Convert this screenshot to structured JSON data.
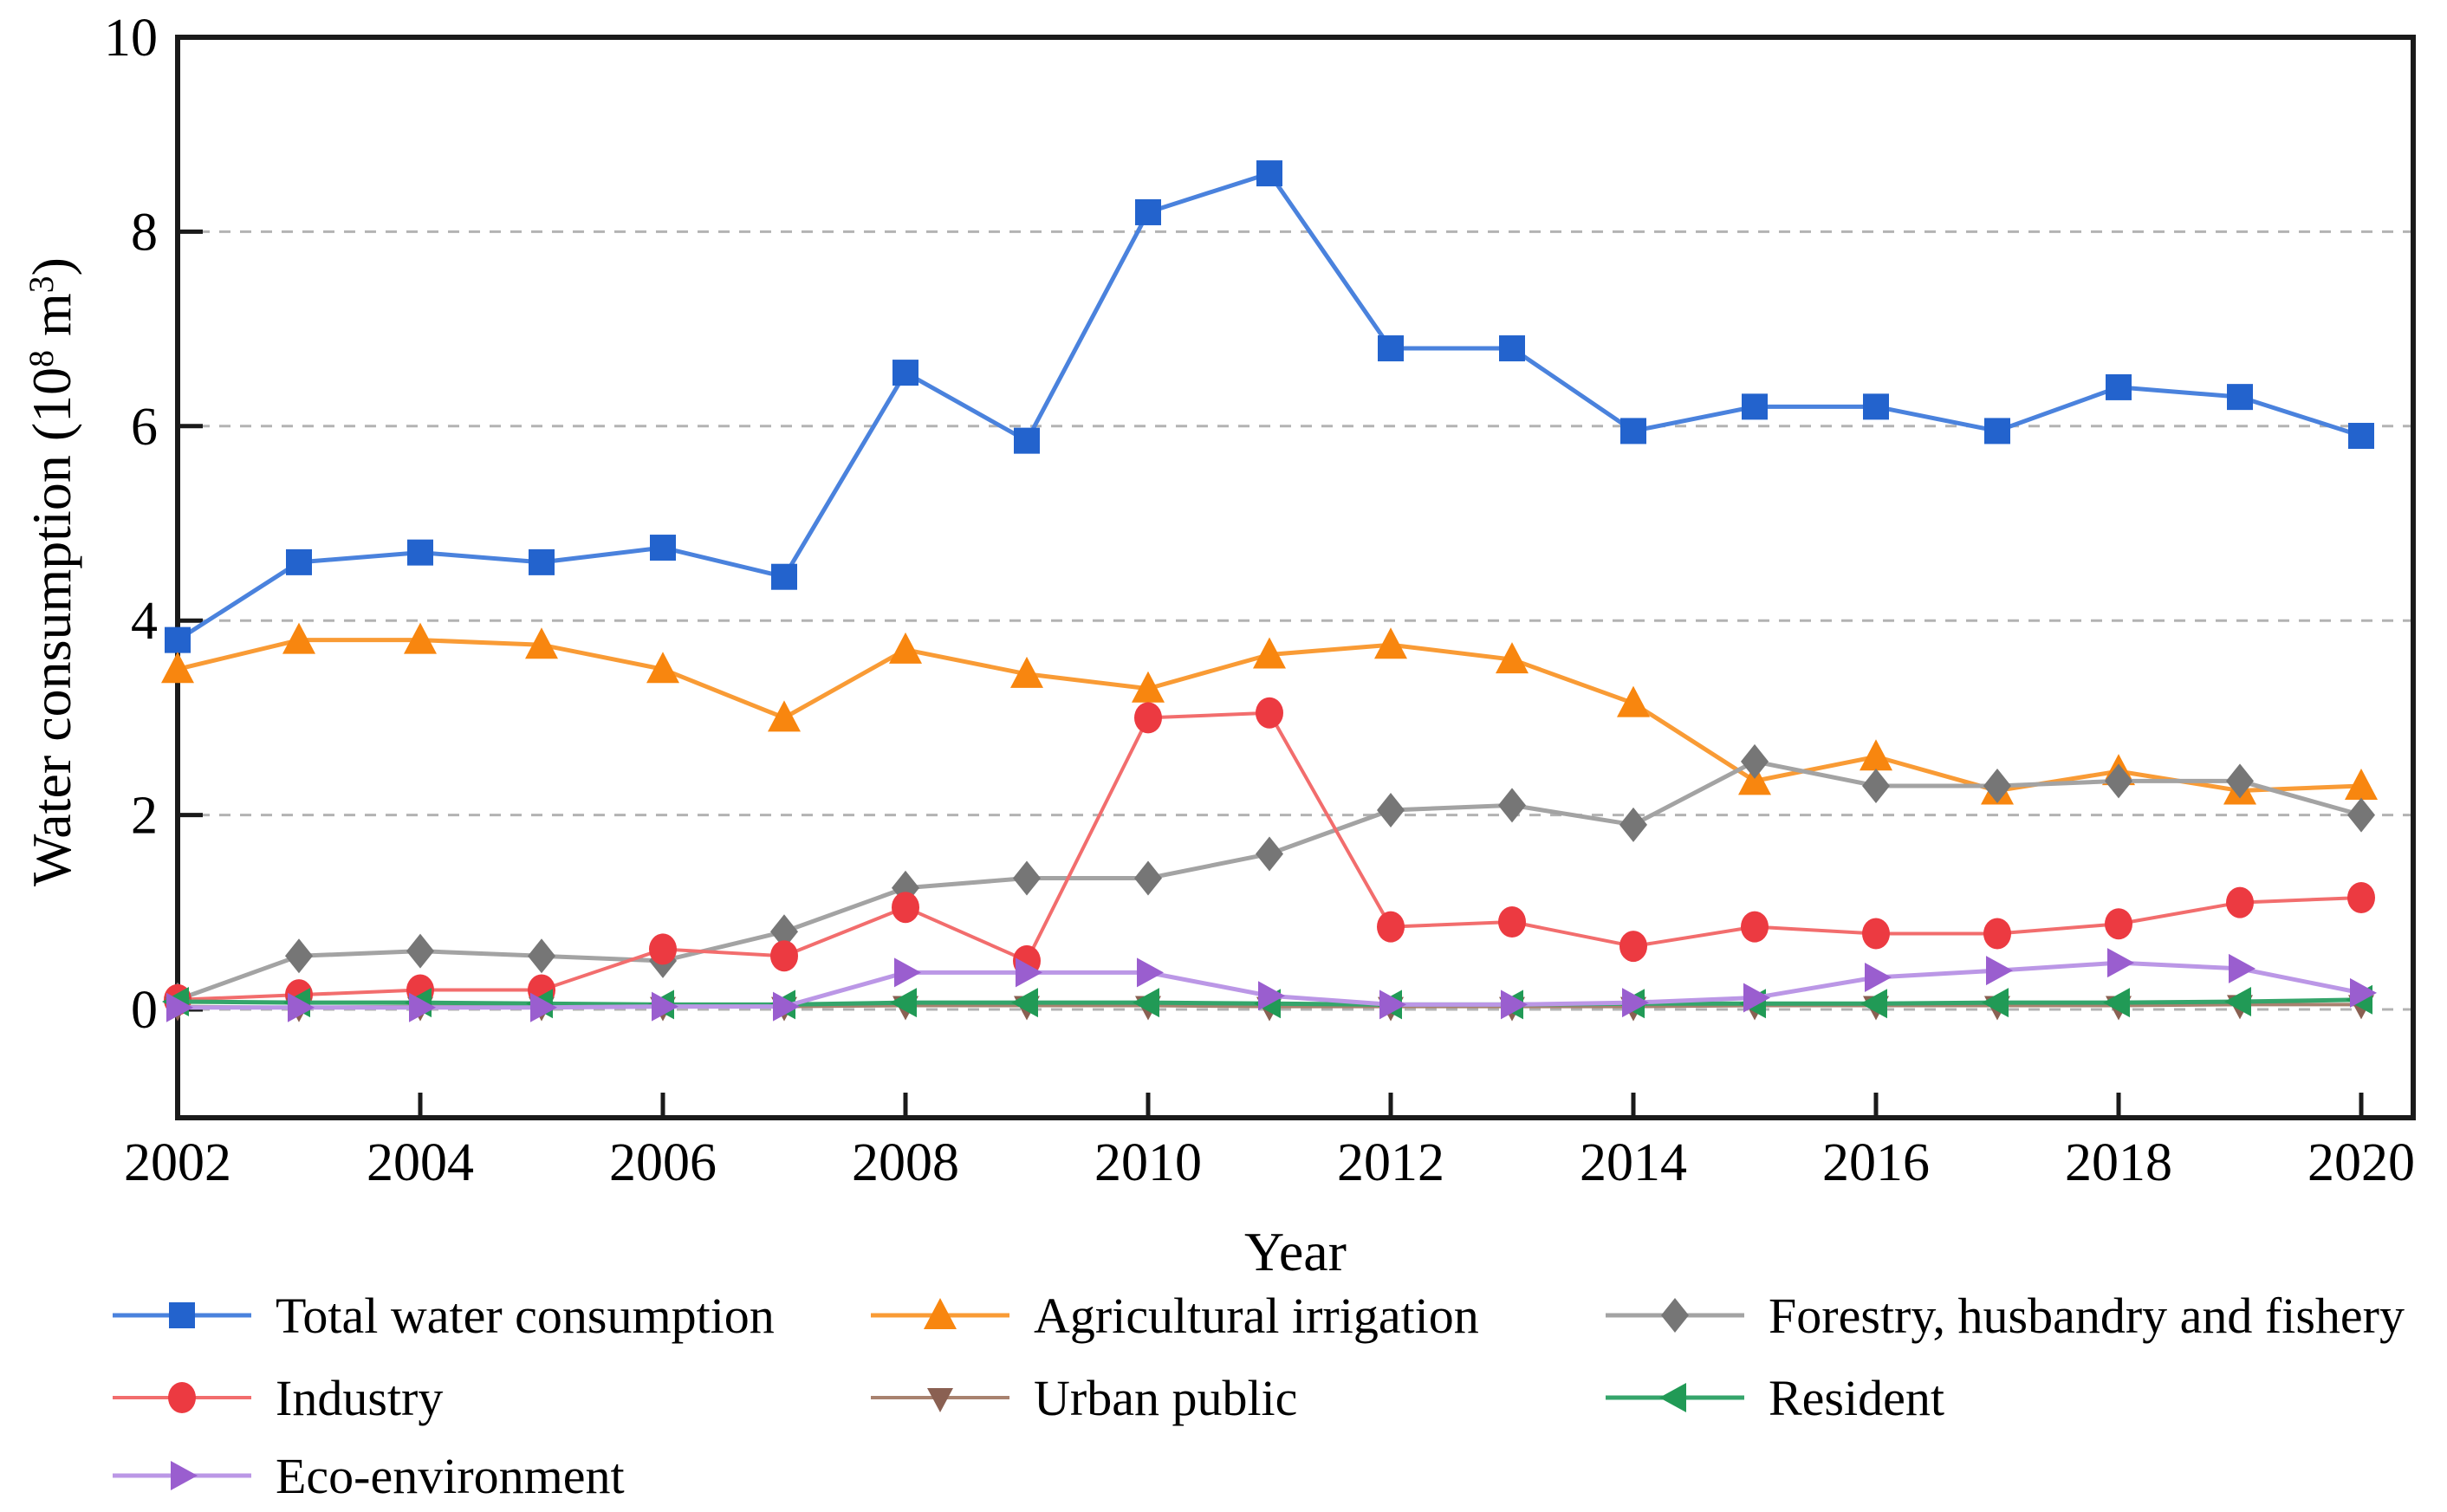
{
  "chart_data": {
    "type": "line",
    "title": "",
    "xlabel": "Year",
    "ylabel": "Water consumption (10⁸ m³)",
    "ylabel_parts": {
      "pre": "Water consumption (10",
      "sup_exp": "8",
      "mid": " m",
      "sup_cube": "3",
      "post": ")"
    },
    "x": [
      2002,
      2003,
      2004,
      2005,
      2006,
      2007,
      2008,
      2009,
      2010,
      2011,
      2012,
      2013,
      2014,
      2015,
      2016,
      2017,
      2018,
      2019,
      2020
    ],
    "x_tick_labels": [
      "2002",
      "2004",
      "2006",
      "2008",
      "2010",
      "2012",
      "2014",
      "2016",
      "2018",
      "2020"
    ],
    "y_tick_labels": [
      "0",
      "2",
      "4",
      "6",
      "8",
      "10"
    ],
    "y_ticks": [
      0,
      2,
      4,
      6,
      8,
      10
    ],
    "ylim": [
      0,
      10
    ],
    "grid": "horizontal dashed at 0,2,4,6,8",
    "legend_position": "below plot, 3 columns",
    "series": [
      {
        "name": "Total water consumption",
        "marker": "square",
        "color": "#2363cd",
        "line_color": "#4a82dd",
        "line_width": 5,
        "values": [
          3.8,
          4.6,
          4.7,
          4.6,
          4.75,
          4.45,
          6.55,
          5.85,
          8.2,
          8.6,
          6.8,
          6.8,
          5.95,
          6.2,
          6.2,
          5.95,
          6.4,
          6.3,
          5.9
        ]
      },
      {
        "name": "Agricultural irrigation",
        "marker": "triangle-up",
        "color": "#f8860f",
        "line_color": "#f99b35",
        "line_width": 5,
        "values": [
          3.5,
          3.8,
          3.8,
          3.75,
          3.5,
          3.0,
          3.7,
          3.45,
          3.3,
          3.65,
          3.75,
          3.6,
          3.15,
          2.35,
          2.6,
          2.25,
          2.45,
          2.25,
          2.3
        ]
      },
      {
        "name": "Forestry, husbandry and fishery",
        "marker": "diamond",
        "color": "#767676",
        "line_color": "#a3a3a3",
        "line_width": 5,
        "values": [
          0.1,
          0.55,
          0.6,
          0.55,
          0.5,
          0.8,
          1.25,
          1.35,
          1.35,
          1.6,
          2.05,
          2.1,
          1.9,
          2.55,
          2.3,
          2.3,
          2.35,
          2.35,
          2.0
        ]
      },
      {
        "name": "Industry",
        "marker": "circle",
        "color": "#ec3a41",
        "line_color": "#f26d6d",
        "line_width": 4,
        "values": [
          0.1,
          0.15,
          0.2,
          0.2,
          0.62,
          0.55,
          1.05,
          0.5,
          3.0,
          3.05,
          0.85,
          0.9,
          0.65,
          0.85,
          0.78,
          0.78,
          0.88,
          1.1,
          1.15
        ]
      },
      {
        "name": "Urban public",
        "marker": "triangle-down",
        "color": "#8a6052",
        "line_color": "#a8826f",
        "line_width": 4,
        "values": [
          0.03,
          0.02,
          0.03,
          0.03,
          0.03,
          0.03,
          0.04,
          0.04,
          0.04,
          0.03,
          0.03,
          0.03,
          0.03,
          0.04,
          0.04,
          0.04,
          0.04,
          0.05,
          0.05
        ]
      },
      {
        "name": "Resident",
        "marker": "triangle-left",
        "color": "#219a56",
        "line_color": "#35a56b",
        "line_width": 5,
        "values": [
          0.08,
          0.07,
          0.07,
          0.06,
          0.05,
          0.05,
          0.07,
          0.07,
          0.07,
          0.06,
          0.05,
          0.05,
          0.06,
          0.06,
          0.06,
          0.07,
          0.07,
          0.08,
          0.1
        ]
      },
      {
        "name": "Eco-environment",
        "marker": "triangle-right",
        "color": "#9a5ecf",
        "line_color": "#bb97e6",
        "line_width": 5,
        "values": [
          0.02,
          0.02,
          0.02,
          0.02,
          0.03,
          0.03,
          0.38,
          0.38,
          0.38,
          0.14,
          0.05,
          0.05,
          0.07,
          0.12,
          0.33,
          0.4,
          0.48,
          0.42,
          0.17
        ]
      }
    ]
  },
  "legend": {
    "rows": [
      [
        "Total water consumption",
        "Agricultural irrigation",
        "Forestry, husbandry and fishery"
      ],
      [
        "Industry",
        "Urban public",
        "Resident"
      ],
      [
        "Eco-environment"
      ]
    ]
  },
  "frame_color": "#1a1a1a",
  "grid_color": "#b3b3b3"
}
